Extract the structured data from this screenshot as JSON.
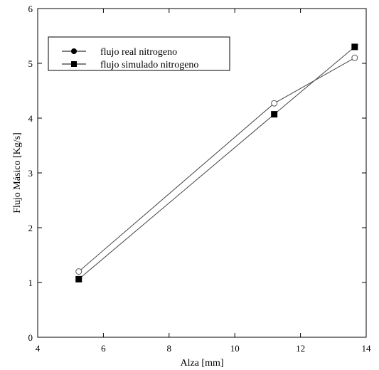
{
  "chart_data": {
    "type": "line",
    "title": "",
    "xlabel": "Alza [mm]",
    "ylabel": "Flujo Másico [Kg/s]",
    "xlim": [
      4,
      14
    ],
    "ylim": [
      0,
      6
    ],
    "xticks": [
      4,
      6,
      8,
      10,
      12,
      14
    ],
    "yticks": [
      0,
      1,
      2,
      3,
      4,
      5,
      6
    ],
    "grid": false,
    "legend_position": "top-left",
    "series": [
      {
        "name": "flujo real nitrogeno",
        "marker": "circle",
        "legend_marker_fill": "#000000",
        "plot_marker_fill": "#ffffff",
        "x": [
          5.25,
          11.2,
          13.65
        ],
        "y": [
          1.2,
          4.27,
          5.1
        ]
      },
      {
        "name": "flujo simulado nitrogeno",
        "marker": "square",
        "legend_marker_fill": "#000000",
        "plot_marker_fill": "#000000",
        "x": [
          5.25,
          11.2,
          13.65
        ],
        "y": [
          1.06,
          4.07,
          5.3
        ]
      }
    ]
  }
}
